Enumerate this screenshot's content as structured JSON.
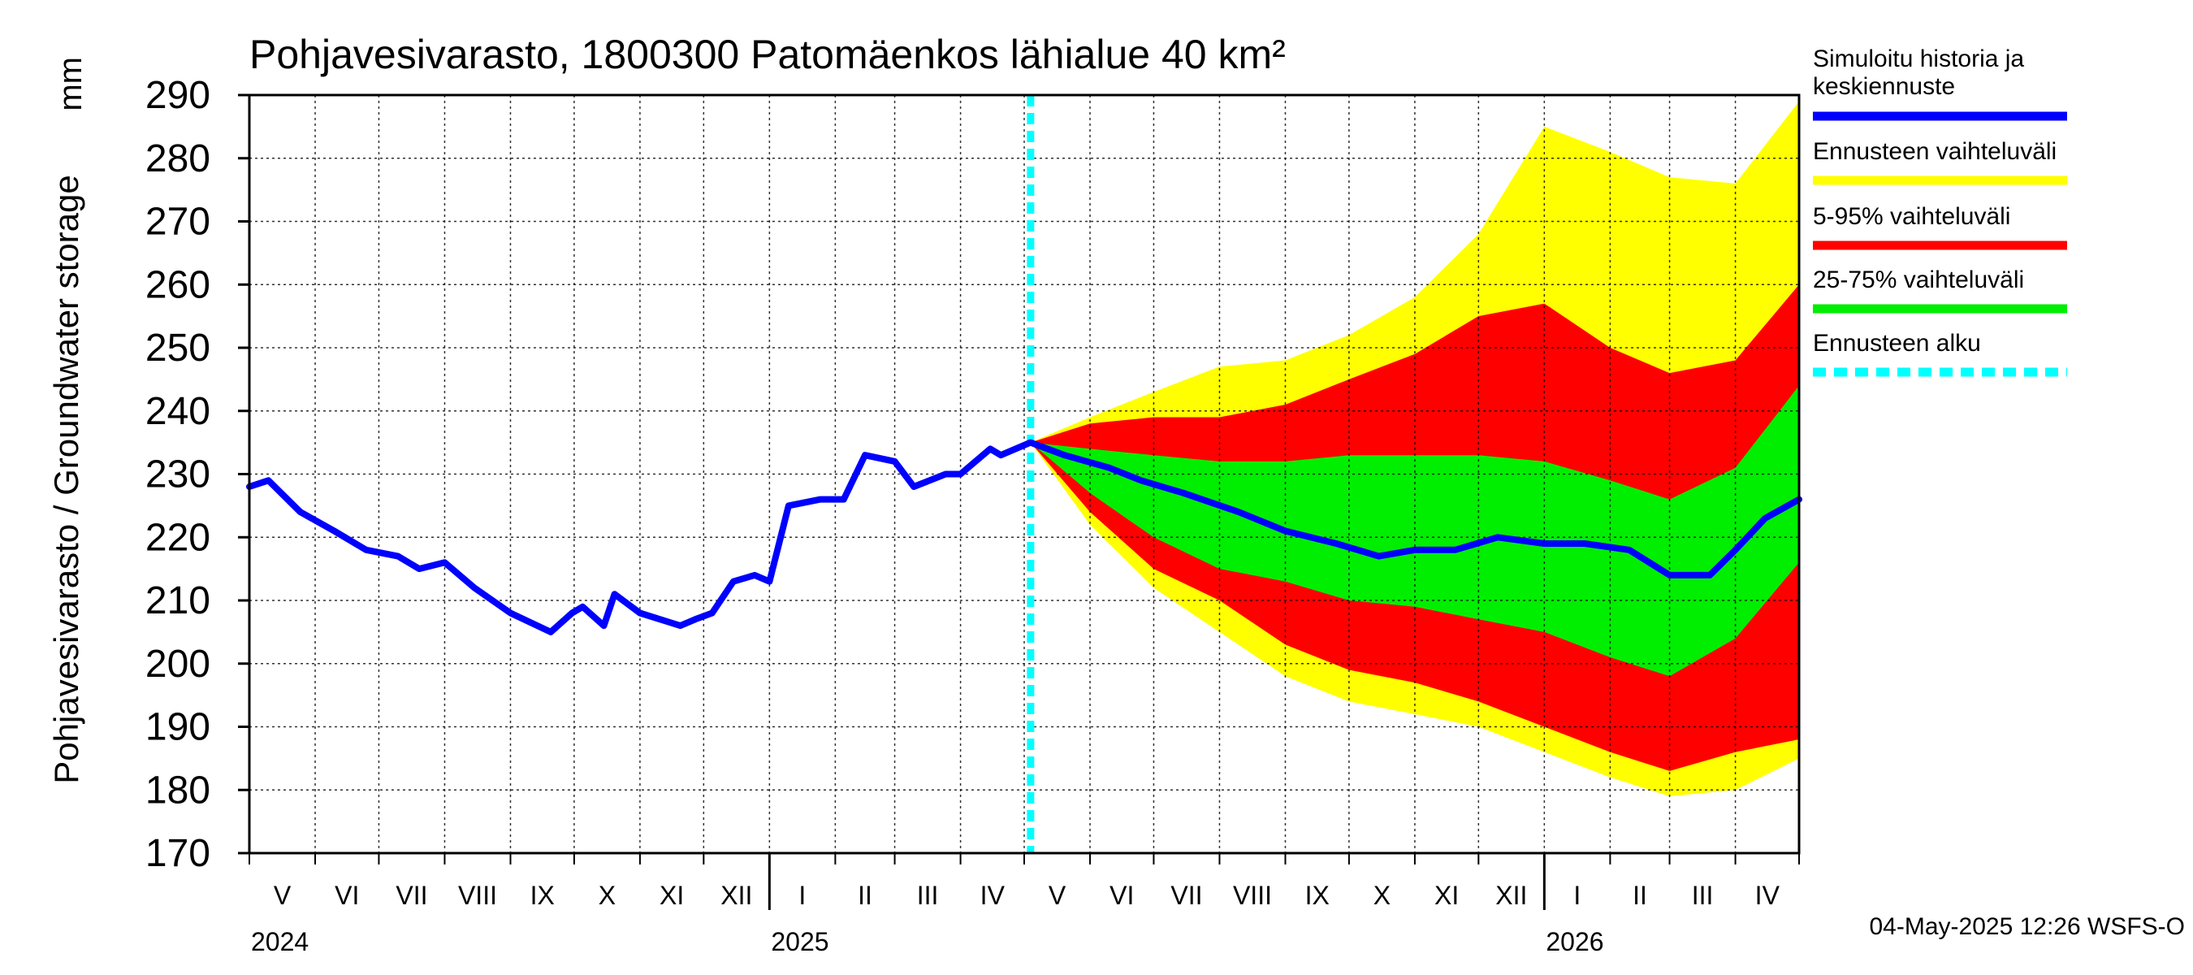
{
  "chart_data": {
    "type": "area",
    "title": "Pohjavesivarasto, 1800300 Patomäenkos lähialue 40 km²",
    "ylabel": "Pohjavesivarasto / Groundwater storage",
    "yunit": "mm",
    "ylim": [
      170,
      290
    ],
    "yticks": [
      170,
      180,
      190,
      200,
      210,
      220,
      230,
      240,
      250,
      260,
      270,
      280,
      290
    ],
    "xlim": [
      "2024-05-01",
      "2026-05-01"
    ],
    "month_labels": [
      "V",
      "VI",
      "VII",
      "VIII",
      "IX",
      "X",
      "XI",
      "XII",
      "I",
      "II",
      "III",
      "IV",
      "V",
      "VI",
      "VII",
      "VIII",
      "IX",
      "X",
      "XI",
      "XII",
      "I",
      "II",
      "III",
      "IV"
    ],
    "year_labels": [
      {
        "label": "2024",
        "date": "2024-05-01"
      },
      {
        "label": "2025",
        "date": "2025-01-01"
      },
      {
        "label": "2026",
        "date": "2026-01-01"
      }
    ],
    "forecast_start": "2025-05-04",
    "grid": true,
    "legend_position": "right",
    "legend": [
      {
        "label": "Simuloitu historia ja keskiennuste",
        "color": "#0000ff",
        "style": "solid"
      },
      {
        "label": "Ennusteen vaihteluväli",
        "color": "#ffff00",
        "style": "solid"
      },
      {
        "label": "5-95% vaihteluväli",
        "color": "#ff0000",
        "style": "solid"
      },
      {
        "label": "25-75% vaihteluväli",
        "color": "#00ee00",
        "style": "solid"
      },
      {
        "label": "Ennusteen alku",
        "color": "#00ffff",
        "style": "dashed"
      }
    ],
    "series": [
      {
        "name": "Simuloitu historia ja keskiennuste",
        "color": "#0000ff",
        "x": [
          "2024-05-01",
          "2024-05-10",
          "2024-05-25",
          "2024-06-10",
          "2024-06-25",
          "2024-07-10",
          "2024-07-20",
          "2024-08-01",
          "2024-08-15",
          "2024-09-01",
          "2024-09-20",
          "2024-09-30",
          "2024-10-05",
          "2024-10-15",
          "2024-10-20",
          "2024-11-01",
          "2024-11-20",
          "2024-11-27",
          "2024-12-05",
          "2024-12-15",
          "2024-12-25",
          "2025-01-01",
          "2025-01-10",
          "2025-01-25",
          "2025-02-05",
          "2025-02-15",
          "2025-03-01",
          "2025-03-10",
          "2025-03-25",
          "2025-04-01",
          "2025-04-15",
          "2025-04-20",
          "2025-05-04",
          "2025-05-20",
          "2025-06-10",
          "2025-06-25",
          "2025-07-15",
          "2025-08-10",
          "2025-09-01",
          "2025-09-25",
          "2025-10-15",
          "2025-11-01",
          "2025-11-20",
          "2025-12-10",
          "2026-01-01",
          "2026-01-20",
          "2026-02-10",
          "2026-03-01",
          "2026-03-20",
          "2026-04-01",
          "2026-04-15",
          "2026-05-01"
        ],
        "y": [
          228,
          229,
          224,
          221,
          218,
          217,
          215,
          216,
          212,
          208,
          205,
          208,
          209,
          206,
          211,
          208,
          206,
          207,
          208,
          213,
          214,
          213,
          225,
          226,
          226,
          233,
          232,
          228,
          230,
          230,
          234,
          233,
          235,
          233,
          231,
          229,
          227,
          224,
          221,
          219,
          217,
          218,
          218,
          220,
          219,
          219,
          218,
          214,
          214,
          218,
          223,
          226
        ]
      },
      {
        "name": "Ennusteen vaihteluväli",
        "color": "#ffff00",
        "x": [
          "2025-05-04",
          "2025-06-01",
          "2025-07-01",
          "2025-08-01",
          "2025-09-01",
          "2025-10-01",
          "2025-11-01",
          "2025-12-01",
          "2026-01-01",
          "2026-02-01",
          "2026-03-01",
          "2026-04-01",
          "2026-05-01"
        ],
        "upper": [
          235,
          239,
          243,
          247,
          248,
          252,
          258,
          268,
          285,
          281,
          277,
          276,
          289
        ],
        "lower": [
          235,
          222,
          212,
          205,
          198,
          194,
          192,
          190,
          186,
          182,
          179,
          180,
          185
        ]
      },
      {
        "name": "5-95% vaihteluväli",
        "color": "#ff0000",
        "x": [
          "2025-05-04",
          "2025-06-01",
          "2025-07-01",
          "2025-08-01",
          "2025-09-01",
          "2025-10-01",
          "2025-11-01",
          "2025-12-01",
          "2026-01-01",
          "2026-02-01",
          "2026-03-01",
          "2026-04-01",
          "2026-05-01"
        ],
        "upper": [
          235,
          238,
          239,
          239,
          241,
          245,
          249,
          255,
          257,
          250,
          246,
          248,
          260
        ],
        "lower": [
          235,
          224,
          215,
          210,
          203,
          199,
          197,
          194,
          190,
          186,
          183,
          186,
          188
        ]
      },
      {
        "name": "25-75% vaihteluväli",
        "color": "#00ee00",
        "x": [
          "2025-05-04",
          "2025-06-01",
          "2025-07-01",
          "2025-08-01",
          "2025-09-01",
          "2025-10-01",
          "2025-11-01",
          "2025-12-01",
          "2026-01-01",
          "2026-02-01",
          "2026-03-01",
          "2026-04-01",
          "2026-05-01"
        ],
        "upper": [
          235,
          234,
          233,
          232,
          232,
          233,
          233,
          233,
          232,
          229,
          226,
          231,
          244
        ],
        "lower": [
          235,
          227,
          220,
          215,
          213,
          210,
          209,
          207,
          205,
          201,
          198,
          204,
          216
        ]
      }
    ],
    "footer": "04-May-2025 12:26 WSFS-O"
  }
}
